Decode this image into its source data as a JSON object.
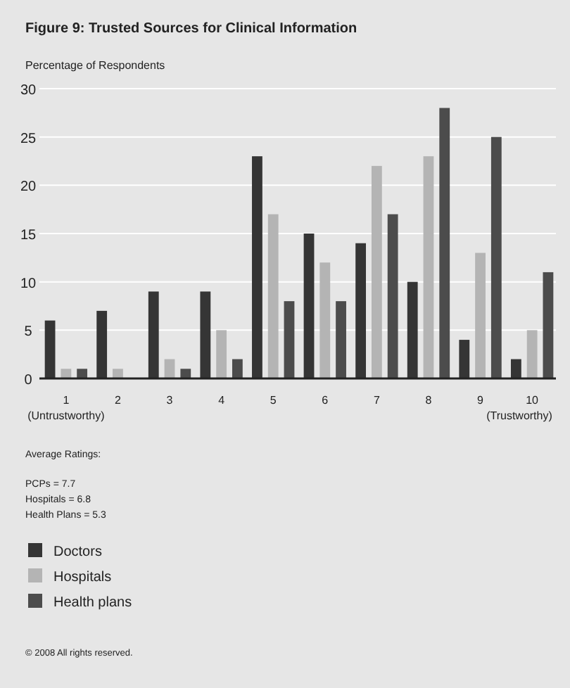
{
  "chart_data": {
    "type": "bar",
    "title": "Figure 9: Trusted Sources for Clinical Information",
    "ylabel": "Percentage of Respondents",
    "categories": [
      "1",
      "2",
      "3",
      "4",
      "5",
      "6",
      "7",
      "8",
      "9",
      "10"
    ],
    "series": [
      {
        "name": "Doctors",
        "color": "#353535",
        "values": [
          6,
          7,
          9,
          9,
          23,
          15,
          14,
          10,
          4,
          2
        ]
      },
      {
        "name": "Hospitals",
        "color": "#b4b4b4",
        "values": [
          1,
          1,
          2,
          5,
          17,
          12,
          22,
          23,
          13,
          5
        ]
      },
      {
        "name": "Health plans",
        "color": "#4c4c4c",
        "values": [
          1,
          0,
          1,
          2,
          8,
          8,
          17,
          28,
          25,
          11
        ]
      }
    ],
    "ylim": [
      0,
      30
    ],
    "yticks": [
      0,
      5,
      10,
      15,
      20,
      25,
      30
    ],
    "grid": "y",
    "legend": "bottom left",
    "annotations": [
      "(Untrustworthy)",
      "(Trustworthy)",
      "Average Ratings:",
      "PCPs = 7.7",
      "Hospitals = 6.8",
      "Health Plans = 5.3",
      "© 2008 All rights reserved."
    ]
  }
}
